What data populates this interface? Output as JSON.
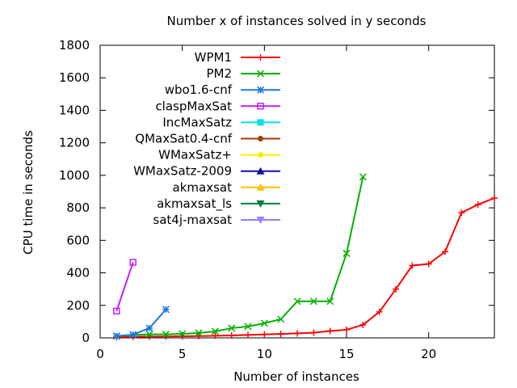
{
  "chart_data": {
    "type": "line",
    "title": "Number x of instances solved in y seconds",
    "xlabel": "Number of instances",
    "ylabel": "CPU time in seconds",
    "xlim": [
      0,
      24
    ],
    "ylim": [
      0,
      1800
    ],
    "xticks": [
      0,
      5,
      10,
      15,
      20
    ],
    "yticks": [
      0,
      200,
      400,
      600,
      800,
      1000,
      1200,
      1400,
      1600,
      1800
    ],
    "grid": false,
    "legend_position": "top-left",
    "series": [
      {
        "name": "WPM1",
        "color": "#ff0000",
        "marker": "plus",
        "x": [
          1,
          2,
          3,
          4,
          5,
          6,
          7,
          8,
          9,
          10,
          11,
          12,
          13,
          14,
          15,
          16,
          17,
          18,
          19,
          20,
          21,
          22,
          23,
          24
        ],
        "y": [
          5,
          7,
          8,
          9,
          10,
          11,
          13,
          15,
          18,
          21,
          24,
          28,
          32,
          42,
          50,
          80,
          160,
          300,
          445,
          455,
          530,
          770,
          820,
          860
        ]
      },
      {
        "name": "PM2",
        "color": "#00b000",
        "marker": "cross",
        "x": [
          1,
          2,
          3,
          4,
          5,
          6,
          7,
          8,
          9,
          10,
          11,
          12,
          13,
          14,
          15,
          16
        ],
        "y": [
          10,
          18,
          22,
          22,
          25,
          30,
          40,
          60,
          70,
          90,
          115,
          225,
          225,
          225,
          520,
          990
        ]
      },
      {
        "name": "wbo1.6-cnf",
        "color": "#1f78e0",
        "marker": "star",
        "x": [
          1,
          2,
          3,
          4
        ],
        "y": [
          12,
          20,
          60,
          175
        ]
      },
      {
        "name": "claspMaxSat",
        "color": "#c020ff",
        "marker": "square",
        "x": [
          1,
          2
        ],
        "y": [
          165,
          465
        ]
      },
      {
        "name": "IncMaxSatz",
        "color": "#00e0e0",
        "marker": "filled-square",
        "x": [],
        "y": []
      },
      {
        "name": "QMaxSat0.4-cnf",
        "color": "#a0400a",
        "marker": "filled-circle",
        "x": [],
        "y": []
      },
      {
        "name": "WMaxSatz+",
        "color": "#f0f000",
        "marker": "filled-circle",
        "x": [],
        "y": []
      },
      {
        "name": "WMaxSatz-2009",
        "color": "#1010a0",
        "marker": "filled-triangle-up",
        "x": [],
        "y": []
      },
      {
        "name": "akmaxsat",
        "color": "#ffc000",
        "marker": "filled-triangle-up",
        "x": [],
        "y": []
      },
      {
        "name": "akmaxsat_ls",
        "color": "#008040",
        "marker": "filled-triangle-down",
        "x": [],
        "y": []
      },
      {
        "name": "sat4j-maxsat",
        "color": "#9080ff",
        "marker": "filled-triangle-down",
        "x": [],
        "y": []
      }
    ]
  }
}
